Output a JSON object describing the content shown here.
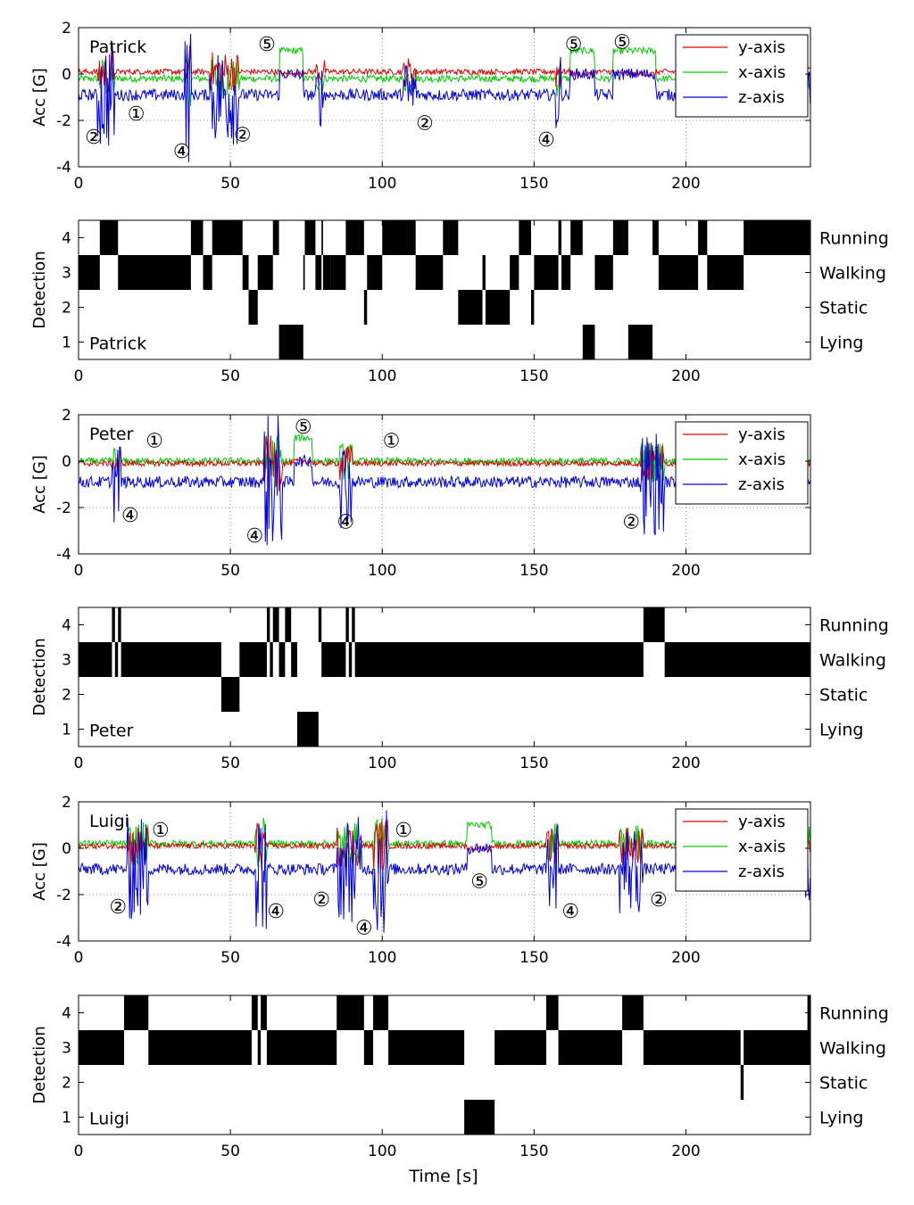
{
  "figure": {
    "xlabel": "Time [s]",
    "acc_ylabel": "Acc [G]",
    "det_ylabel": "Detection",
    "legend": [
      "y-axis",
      "x-axis",
      "z-axis"
    ],
    "colors": {
      "y": "#e00000",
      "x": "#00cc00",
      "z": "#0000dd",
      "bars": "#000000"
    },
    "x_ticks": [
      "0",
      "50",
      "100",
      "150",
      "200"
    ],
    "acc_y_ticks": [
      "2",
      "0",
      "-2",
      "-4"
    ],
    "det_y_ticks": [
      "4",
      "3",
      "2",
      "1"
    ],
    "activity_labels": [
      "Running",
      "Walking",
      "Static",
      "Lying"
    ]
  },
  "chart_data": [
    {
      "type": "line",
      "person": "Patrick",
      "xlim": [
        0,
        241
      ],
      "ylim": [
        -4,
        2
      ],
      "grid": true,
      "legend_position": "top-right",
      "series": [
        {
          "name": "y-axis",
          "color": "#e00000",
          "baseline": 0.1
        },
        {
          "name": "x-axis",
          "color": "#00cc00",
          "baseline": -0.2
        },
        {
          "name": "z-axis",
          "color": "#0000dd",
          "baseline": -0.9
        }
      ],
      "lying_intervals": [
        [
          66,
          74
        ],
        [
          162,
          170
        ],
        [
          176,
          190
        ]
      ],
      "bursts": [
        [
          6,
          12,
          2.4
        ],
        [
          35,
          37,
          3.0
        ],
        [
          43,
          53,
          2.2
        ],
        [
          78,
          81,
          1.4
        ],
        [
          107,
          111,
          1.6
        ],
        [
          157,
          159,
          2.0
        ],
        [
          239,
          241,
          1.2
        ]
      ],
      "annotations": [
        {
          "label": "⑤",
          "x": 62,
          "y": 1.3
        },
        {
          "label": "①",
          "x": 19,
          "y": -1.7
        },
        {
          "label": "②",
          "x": 5,
          "y": -2.7
        },
        {
          "label": "④",
          "x": 34,
          "y": -3.3
        },
        {
          "label": "②",
          "x": 54,
          "y": -2.6
        },
        {
          "label": "②",
          "x": 114,
          "y": -2.1
        },
        {
          "label": "④",
          "x": 154,
          "y": -2.8
        },
        {
          "label": "⑤",
          "x": 163,
          "y": 1.3
        },
        {
          "label": "⑤",
          "x": 179,
          "y": 1.4
        }
      ]
    },
    {
      "type": "heatmap",
      "person": "Patrick",
      "xlim": [
        0,
        241
      ],
      "ylim": [
        0.5,
        4.5
      ],
      "levels": [
        "Lying",
        "Static",
        "Walking",
        "Running"
      ],
      "segments": [
        [
          0,
          7,
          3
        ],
        [
          7,
          13,
          4
        ],
        [
          13,
          37,
          3
        ],
        [
          37,
          41,
          4
        ],
        [
          41,
          44,
          3
        ],
        [
          44,
          54,
          4
        ],
        [
          54,
          56,
          3
        ],
        [
          56,
          59,
          2
        ],
        [
          59,
          64,
          3
        ],
        [
          64,
          66,
          4
        ],
        [
          66,
          74,
          1
        ],
        [
          74,
          74.5,
          3
        ],
        [
          74.5,
          78,
          4
        ],
        [
          78,
          80,
          3
        ],
        [
          80,
          80.5,
          4
        ],
        [
          80.5,
          83,
          3
        ],
        [
          83,
          88,
          3
        ],
        [
          88,
          94,
          4
        ],
        [
          94,
          95,
          2
        ],
        [
          95,
          100,
          3
        ],
        [
          100,
          108,
          4
        ],
        [
          108,
          111,
          4
        ],
        [
          111,
          120,
          3
        ],
        [
          120,
          125,
          4
        ],
        [
          125,
          133,
          2
        ],
        [
          133,
          134,
          3
        ],
        [
          134,
          142,
          2
        ],
        [
          142,
          145,
          3
        ],
        [
          145,
          149,
          4
        ],
        [
          149,
          150,
          2
        ],
        [
          150,
          158,
          3
        ],
        [
          158,
          159,
          4
        ],
        [
          159,
          162,
          3
        ],
        [
          162,
          166,
          4
        ],
        [
          166,
          170,
          1
        ],
        [
          170,
          176,
          3
        ],
        [
          176,
          181,
          4
        ],
        [
          181,
          189,
          1
        ],
        [
          189,
          191,
          4
        ],
        [
          191,
          204,
          3
        ],
        [
          204,
          207,
          4
        ],
        [
          207,
          219,
          3
        ],
        [
          219,
          221,
          4
        ],
        [
          221,
          241,
          4
        ]
      ],
      "label": "Patrick"
    },
    {
      "type": "line",
      "person": "Peter",
      "xlim": [
        0,
        241
      ],
      "ylim": [
        -4,
        2
      ],
      "grid": true,
      "legend_position": "top-right",
      "series": [
        {
          "name": "y-axis",
          "color": "#e00000",
          "baseline": -0.1
        },
        {
          "name": "x-axis",
          "color": "#00cc00",
          "baseline": 0.0
        },
        {
          "name": "z-axis",
          "color": "#0000dd",
          "baseline": -0.9
        }
      ],
      "lying_intervals": [
        [
          71,
          77
        ]
      ],
      "bursts": [
        [
          11,
          14,
          1.8
        ],
        [
          61,
          67,
          3.0
        ],
        [
          86,
          90,
          2.0
        ],
        [
          185,
          193,
          2.3
        ]
      ],
      "annotations": [
        {
          "label": "①",
          "x": 25,
          "y": 0.9
        },
        {
          "label": "⑤",
          "x": 74,
          "y": 1.5
        },
        {
          "label": "①",
          "x": 103,
          "y": 0.9
        },
        {
          "label": "④",
          "x": 17,
          "y": -2.3
        },
        {
          "label": "④",
          "x": 58,
          "y": -3.2
        },
        {
          "label": "④",
          "x": 88,
          "y": -2.6
        },
        {
          "label": "②",
          "x": 182,
          "y": -2.6
        }
      ]
    },
    {
      "type": "heatmap",
      "person": "Peter",
      "xlim": [
        0,
        241
      ],
      "ylim": [
        0.5,
        4.5
      ],
      "levels": [
        "Lying",
        "Static",
        "Walking",
        "Running"
      ],
      "segments": [
        [
          0,
          11,
          3
        ],
        [
          11,
          12,
          4
        ],
        [
          12,
          13,
          3
        ],
        [
          13,
          14,
          4
        ],
        [
          14,
          47,
          3
        ],
        [
          47,
          53,
          2
        ],
        [
          53,
          62,
          3
        ],
        [
          62,
          63,
          4
        ],
        [
          63,
          64,
          3
        ],
        [
          64,
          66,
          4
        ],
        [
          66,
          68,
          3
        ],
        [
          68,
          70,
          4
        ],
        [
          70,
          72,
          3
        ],
        [
          72,
          79,
          1
        ],
        [
          79,
          80,
          4
        ],
        [
          80,
          88,
          3
        ],
        [
          88,
          89,
          4
        ],
        [
          89,
          90,
          3
        ],
        [
          90,
          91,
          4
        ],
        [
          91,
          186,
          3
        ],
        [
          186,
          193,
          4
        ],
        [
          193,
          241,
          3
        ]
      ],
      "label": "Peter"
    },
    {
      "type": "line",
      "person": "Luigi",
      "xlim": [
        0,
        241
      ],
      "ylim": [
        -4,
        2
      ],
      "grid": true,
      "legend_position": "top-right",
      "series": [
        {
          "name": "y-axis",
          "color": "#e00000",
          "baseline": 0.1
        },
        {
          "name": "x-axis",
          "color": "#00cc00",
          "baseline": 0.2
        },
        {
          "name": "z-axis",
          "color": "#0000dd",
          "baseline": -0.9
        }
      ],
      "lying_intervals": [
        [
          128,
          136
        ]
      ],
      "bursts": [
        [
          16,
          23,
          2.3
        ],
        [
          58,
          62,
          2.8
        ],
        [
          85,
          93,
          2.3
        ],
        [
          97,
          102,
          3.0
        ],
        [
          154,
          158,
          2.2
        ],
        [
          178,
          186,
          2.0
        ],
        [
          239,
          241,
          2.0
        ]
      ],
      "annotations": [
        {
          "label": "①",
          "x": 27,
          "y": 0.8
        },
        {
          "label": "①",
          "x": 107,
          "y": 0.8
        },
        {
          "label": "②",
          "x": 13,
          "y": -2.5
        },
        {
          "label": "④",
          "x": 65,
          "y": -2.7
        },
        {
          "label": "②",
          "x": 80,
          "y": -2.2
        },
        {
          "label": "④",
          "x": 94,
          "y": -3.4
        },
        {
          "label": "⑤",
          "x": 132,
          "y": -1.4
        },
        {
          "label": "④",
          "x": 162,
          "y": -2.7
        },
        {
          "label": "②",
          "x": 191,
          "y": -2.2
        }
      ]
    },
    {
      "type": "heatmap",
      "person": "Luigi",
      "xlim": [
        0,
        241
      ],
      "ylim": [
        0.5,
        4.5
      ],
      "levels": [
        "Lying",
        "Static",
        "Walking",
        "Running"
      ],
      "segments": [
        [
          0,
          15,
          3
        ],
        [
          15,
          23,
          4
        ],
        [
          23,
          57,
          3
        ],
        [
          57,
          59,
          4
        ],
        [
          59,
          60,
          3
        ],
        [
          60,
          62,
          4
        ],
        [
          62,
          85,
          3
        ],
        [
          85,
          94,
          4
        ],
        [
          94,
          97,
          3
        ],
        [
          97,
          102,
          4
        ],
        [
          102,
          127,
          3
        ],
        [
          127,
          137,
          1
        ],
        [
          137,
          154,
          3
        ],
        [
          154,
          158,
          4
        ],
        [
          158,
          179,
          3
        ],
        [
          179,
          186,
          4
        ],
        [
          186,
          218,
          3
        ],
        [
          218,
          219,
          2
        ],
        [
          219,
          241,
          3
        ],
        [
          240,
          241,
          4
        ]
      ],
      "label": "Luigi"
    }
  ]
}
